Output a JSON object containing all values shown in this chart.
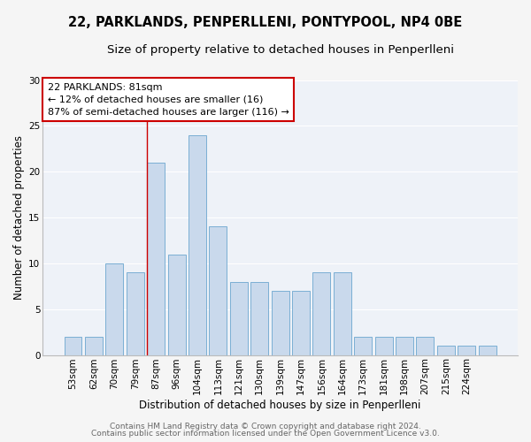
{
  "title": "22, PARKLANDS, PENPERLLENI, PONTYPOOL, NP4 0BE",
  "subtitle": "Size of property relative to detached houses in Penperlleni",
  "xlabel": "Distribution of detached houses by size in Penperlleni",
  "ylabel": "Number of detached properties",
  "bar_values": [
    2,
    2,
    10,
    9,
    21,
    11,
    24,
    14,
    8,
    8,
    7,
    7,
    9,
    9,
    2,
    2,
    2,
    2,
    1,
    1,
    1
  ],
  "bar_labels": [
    "53sqm",
    "62sqm",
    "70sqm",
    "79sqm",
    "87sqm",
    "96sqm",
    "104sqm",
    "113sqm",
    "121sqm",
    "130sqm",
    "139sqm",
    "147sqm",
    "156sqm",
    "164sqm",
    "173sqm",
    "181sqm",
    "198sqm",
    "207sqm",
    "215sqm",
    "224sqm",
    ""
  ],
  "bar_color": "#c9d9ec",
  "bar_edgecolor": "#7bafd4",
  "bar_linewidth": 0.7,
  "ylim": [
    0,
    30
  ],
  "yticks": [
    0,
    5,
    10,
    15,
    20,
    25,
    30
  ],
  "red_line_x": 3.55,
  "annotation_line1": "22 PARKLANDS: 81sqm",
  "annotation_line2": "← 12% of detached houses are smaller (16)",
  "annotation_line3": "87% of semi-detached houses are larger (116) →",
  "footer_line1": "Contains HM Land Registry data © Crown copyright and database right 2024.",
  "footer_line2": "Contains public sector information licensed under the Open Government Licence v3.0.",
  "bg_color": "#eef2f8",
  "plot_bg_color": "#eef2f8",
  "fig_bg_color": "#f5f5f5",
  "grid_color": "#ffffff",
  "title_fontsize": 10.5,
  "subtitle_fontsize": 9.5,
  "axis_label_fontsize": 8.5,
  "tick_fontsize": 7.5,
  "annotation_fontsize": 8,
  "footer_fontsize": 6.5
}
